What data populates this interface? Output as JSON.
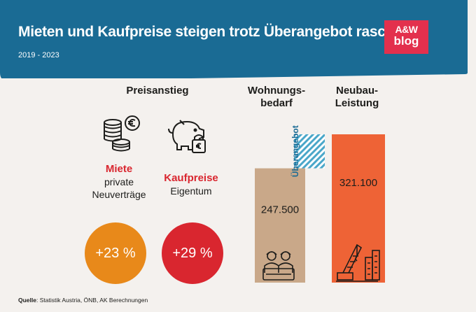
{
  "header": {
    "title": "Mieten und Kaufpreise steigen trotz Überangebot rasch an",
    "subtitle": "2019 - 2023",
    "logo_line1": "A&W",
    "logo_line2": "blog"
  },
  "colors": {
    "banner": "#1a6b94",
    "rent_circle": "#e8891a",
    "price_circle": "#d9262f",
    "demand_bar": "#c9a889",
    "supply_bar": "#ee6336",
    "surplus_hatch": "#4aa7c9"
  },
  "price_section": {
    "heading": "Preisanstieg",
    "rent": {
      "title": "Miete",
      "line1": "private",
      "line2": "Neuverträge",
      "value": "+23 %",
      "icon": "euro-coins-icon"
    },
    "purchase": {
      "title": "Kaufpreise",
      "line1": "Eigentum",
      "value": "+29 %",
      "icon": "piggy-bank-euro-icon"
    }
  },
  "housing": {
    "demand_heading": [
      "Wohnungs-",
      "bedarf"
    ],
    "supply_heading": [
      "Neubau-",
      "Leistung"
    ]
  },
  "chart_data": {
    "type": "bar",
    "categories": [
      "Wohnungsbedarf",
      "Neubau-Leistung"
    ],
    "values": [
      247500,
      321100
    ],
    "value_labels": [
      "247.500",
      "321.100"
    ],
    "surplus_label": "Überangebot",
    "ylim": [
      0,
      321100
    ],
    "grid": false,
    "legend": "none"
  },
  "source": {
    "label": "Quelle",
    "text": ": Statistik Austria, ÖNB, AK Berechnungen"
  }
}
